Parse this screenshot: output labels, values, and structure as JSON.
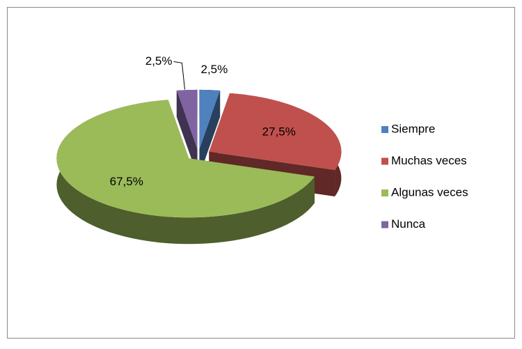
{
  "chart_data": {
    "type": "pie3d",
    "categories": [
      "Siempre",
      "Muchas veces",
      "Algunas veces",
      "Nunca"
    ],
    "values": [
      2.5,
      27.5,
      67.5,
      2.5
    ],
    "value_labels": [
      "2,5%",
      "27,5%",
      "67,5%",
      "2,5%"
    ],
    "colors": [
      "#4f81bd",
      "#c0504d",
      "#9bbb59",
      "#8064a2"
    ],
    "legend": "right"
  }
}
